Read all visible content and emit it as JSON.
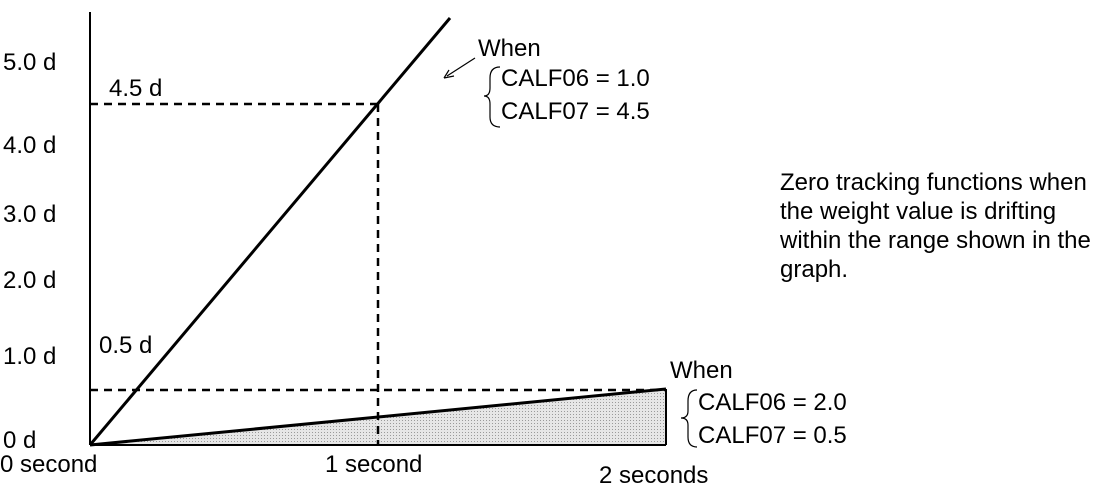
{
  "chart_data": {
    "type": "line",
    "y_ticks": [
      "5.0 d",
      "4.0 d",
      "3.0 d",
      "2.0 d",
      "1.0 d",
      "0 d"
    ],
    "x_ticks": [
      "0 second",
      "1 second",
      "2 seconds"
    ],
    "series": [
      {
        "x": [
          0,
          1
        ],
        "y": [
          0,
          4.5
        ]
      },
      {
        "x": [
          0,
          2
        ],
        "y": [
          0,
          0.5
        ]
      }
    ],
    "reference_labels": {
      "upper": "4.5 d",
      "lower": "0.5 d"
    },
    "upper_callout": {
      "when": "When",
      "line1": "CALF06 = 1.0",
      "line2": "CALF07 = 4.5"
    },
    "lower_callout": {
      "when": "When",
      "line1": "CALF06 = 2.0",
      "line2": "CALF07 = 0.5"
    }
  },
  "note": "Zero tracking functions when the weight value is drifting within the range shown in the graph."
}
